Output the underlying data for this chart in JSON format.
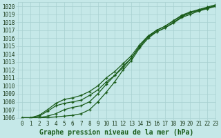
{
  "xlabel": "Graphe pression niveau de la mer (hPa)",
  "ylim": [
    1006,
    1020.5
  ],
  "xlim": [
    -0.5,
    23
  ],
  "yticks": [
    1006,
    1007,
    1008,
    1009,
    1010,
    1011,
    1012,
    1013,
    1014,
    1015,
    1016,
    1017,
    1018,
    1019,
    1020
  ],
  "xticks": [
    0,
    1,
    2,
    3,
    4,
    5,
    6,
    7,
    8,
    9,
    10,
    11,
    12,
    13,
    14,
    15,
    16,
    17,
    18,
    19,
    20,
    21,
    22,
    23
  ],
  "background_color": "#c5e8e8",
  "grid_color": "#a8d0d0",
  "line_color": "#1a5c1a",
  "lines": [
    [
      1006.0,
      1006.0,
      1006.0,
      1006.0,
      1006.1,
      1006.2,
      1006.3,
      1006.5,
      1007.0,
      1008.0,
      1009.2,
      1010.5,
      1012.0,
      1013.2,
      1014.8,
      1016.0,
      1016.8,
      1017.3,
      1018.0,
      1018.7,
      1019.2,
      1019.5,
      1019.8,
      1020.0
    ],
    [
      1006.0,
      1006.0,
      1006.0,
      1006.2,
      1006.5,
      1007.0,
      1007.3,
      1007.5,
      1008.0,
      1009.0,
      1010.2,
      1011.3,
      1012.5,
      1013.5,
      1015.0,
      1016.2,
      1017.0,
      1017.5,
      1018.2,
      1018.9,
      1019.3,
      1019.6,
      1019.9,
      1020.2
    ],
    [
      1006.0,
      1006.0,
      1006.3,
      1007.0,
      1007.8,
      1008.3,
      1008.5,
      1008.8,
      1009.3,
      1010.0,
      1011.0,
      1011.8,
      1012.8,
      1013.8,
      1015.2,
      1016.3,
      1017.0,
      1017.5,
      1018.2,
      1018.8,
      1019.2,
      1019.5,
      1019.8,
      1020.1
    ],
    [
      1006.0,
      1006.0,
      1006.2,
      1006.8,
      1007.5,
      1007.8,
      1008.0,
      1008.2,
      1008.8,
      1009.5,
      1010.5,
      1011.3,
      1012.3,
      1013.5,
      1015.0,
      1016.2,
      1016.8,
      1017.3,
      1017.9,
      1018.6,
      1019.0,
      1019.4,
      1019.7,
      1020.0
    ]
  ],
  "tick_fontsize": 5.5,
  "label_fontsize": 7,
  "figsize": [
    3.2,
    2.0
  ],
  "dpi": 100
}
